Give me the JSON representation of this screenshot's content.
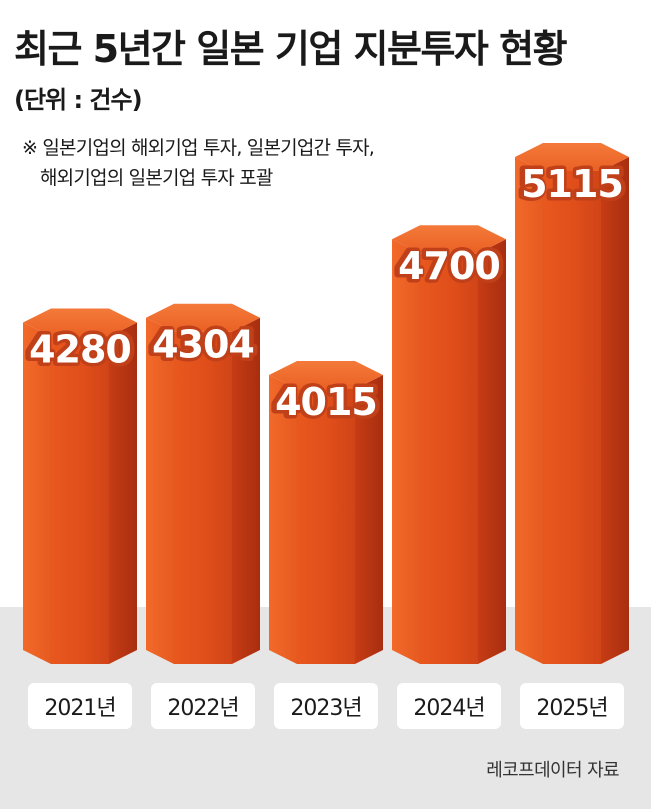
{
  "header": {
    "title": "최근 5년간 일본 기업 지분투자 현황",
    "unit": "(단위 : 건수)"
  },
  "note": {
    "line1": "※ 일본기업의 해외기업 투자, 일본기업간 투자,",
    "line2": "해외기업의 일본기업 투자 포괄"
  },
  "source": "레코프데이터 자료",
  "colors": {
    "bar_front": "#e0521c",
    "bar_side": "#b83512",
    "bar_top": "#f06a2c",
    "floor": "#e4e4e4",
    "label_shadow": "#c0401a"
  },
  "chart_data": {
    "type": "bar",
    "categories": [
      "2021년",
      "2022년",
      "2023년",
      "2024년",
      "2025년"
    ],
    "values": [
      4280,
      4304,
      4015,
      4700,
      5115
    ],
    "title": "최근 5년간 일본 기업 지분투자 현황",
    "ylabel": "(단위 : 건수)",
    "grid": false,
    "legend": "none"
  }
}
